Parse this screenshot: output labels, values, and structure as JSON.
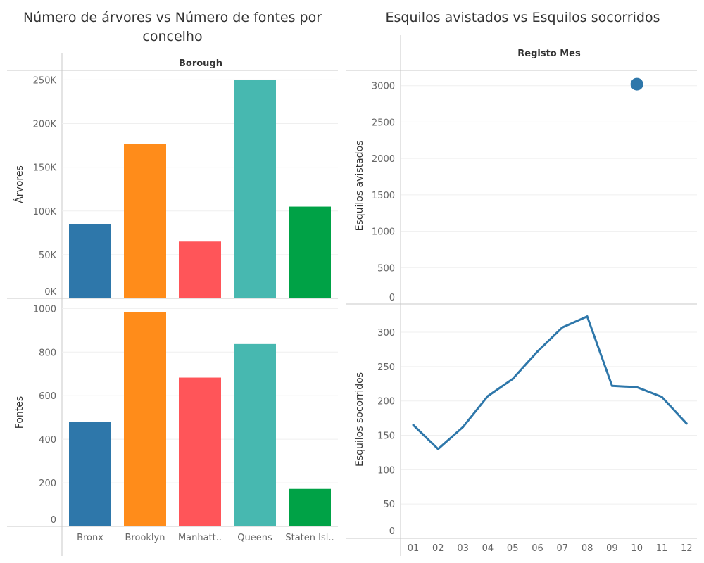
{
  "left_panel": {
    "title": "Número de árvores vs Número de fontes por concelho",
    "header": "Borough",
    "top_ylabel": "Árvores",
    "bottom_ylabel": "Fontes",
    "category_labels": [
      "Bronx",
      "Brooklyn",
      "Manhatt..",
      "Queens",
      "Staten Isl.."
    ]
  },
  "right_panel": {
    "title": "Esquilos avistados vs Esquilos socorridos",
    "header": "Registo Mes",
    "top_ylabel": "Esquilos avistados",
    "bottom_ylabel": "Esquilos socorridos"
  },
  "colors": {
    "Bronx": "#2e77aa",
    "Brooklyn": "#ff8c1a",
    "Manhattan": "#ff5559",
    "Queens": "#47b8b0",
    "Staten Island": "#00a246",
    "line": "#2e77aa",
    "grid": "#efefef",
    "axis_text": "#666666",
    "divider": "#c8c8c8"
  },
  "chart_data": [
    {
      "type": "bar",
      "categories": [
        "Bronx",
        "Brooklyn",
        "Manhattan",
        "Queens",
        "Staten Island"
      ],
      "values": [
        85000,
        177000,
        65000,
        250000,
        105000
      ],
      "ylabel": "Árvores",
      "ylim": [
        0,
        260000
      ],
      "yticks": [
        0,
        50000,
        100000,
        150000,
        200000,
        250000
      ],
      "ytick_labels": [
        "0K",
        "50K",
        "100K",
        "150K",
        "200K",
        "250K"
      ],
      "grid": true
    },
    {
      "type": "bar",
      "categories": [
        "Bronx",
        "Brooklyn",
        "Manhattan",
        "Queens",
        "Staten Island"
      ],
      "values": [
        478,
        982,
        683,
        837,
        172
      ],
      "ylabel": "Fontes",
      "ylim": [
        0,
        1040
      ],
      "yticks": [
        0,
        200,
        400,
        600,
        800,
        1000
      ],
      "ytick_labels": [
        "0",
        "200",
        "400",
        "600",
        "800",
        "1000"
      ],
      "grid": true
    },
    {
      "type": "scatter",
      "x": [
        "10"
      ],
      "values": [
        3020
      ],
      "ylabel": "Esquilos avistados",
      "ylim": [
        0,
        3200
      ],
      "yticks": [
        0,
        500,
        1000,
        1500,
        2000,
        2500,
        3000
      ],
      "grid": true
    },
    {
      "type": "line",
      "x": [
        "01",
        "02",
        "03",
        "04",
        "05",
        "06",
        "07",
        "08",
        "09",
        "10",
        "11",
        "12"
      ],
      "values": [
        165,
        130,
        162,
        207,
        232,
        272,
        307,
        323,
        222,
        220,
        206,
        167
      ],
      "xlabel": "",
      "ylabel": "Esquilos socorridos",
      "ylim": [
        0,
        340
      ],
      "yticks": [
        0,
        50,
        100,
        150,
        200,
        250,
        300
      ],
      "grid": true
    }
  ]
}
